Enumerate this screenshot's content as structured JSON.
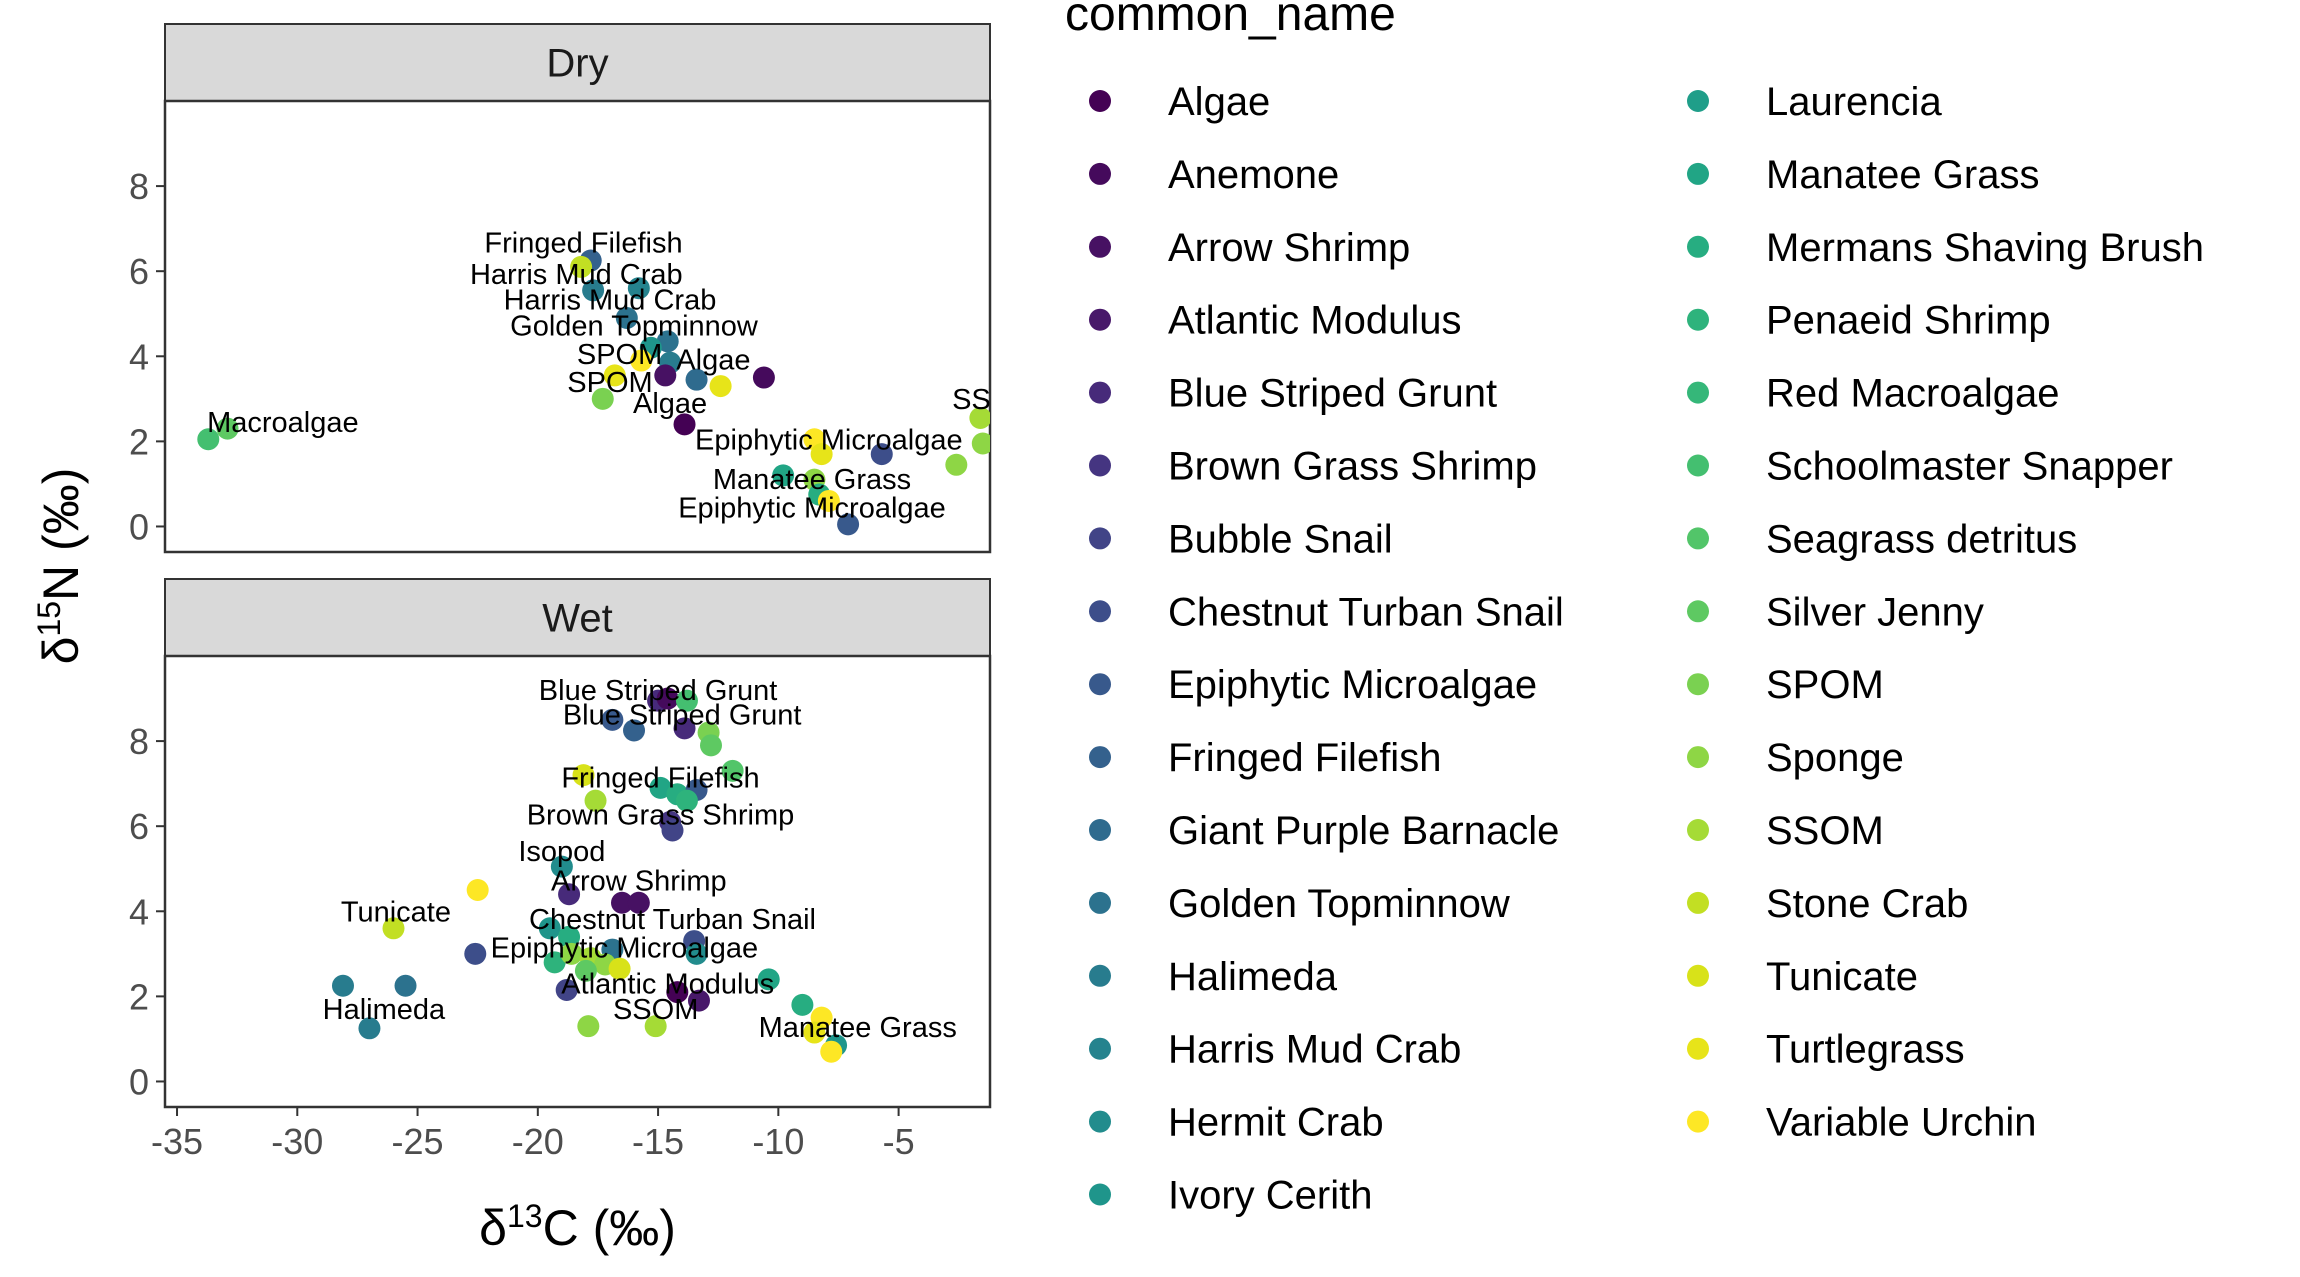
{
  "chart_data": {
    "type": "scatter",
    "xlabel": "δ13C (‰)",
    "ylabel": "δ15N (‰)",
    "xlabel_parts": {
      "base": "δ",
      "sup": "13",
      "rest": "C (‰)"
    },
    "ylabel_parts": {
      "base": "δ",
      "sup": "15",
      "rest": "N (‰)"
    },
    "xlim": [
      -35.5,
      -1.2
    ],
    "ylim": [
      -0.6,
      10.0
    ],
    "x_ticks": [
      -35,
      -30,
      -25,
      -20,
      -15,
      -10,
      -5
    ],
    "y_ticks": [
      0,
      2,
      4,
      6,
      8
    ],
    "grid": false,
    "legend_position": "right",
    "legend_title": "common_name",
    "legend": [
      {
        "name": "Algae",
        "color": "#440154"
      },
      {
        "name": "Anemone",
        "color": "#450a5c"
      },
      {
        "name": "Arrow Shrimp",
        "color": "#471163"
      },
      {
        "name": "Atlantic Modulus",
        "color": "#48186a"
      },
      {
        "name": "Blue Striped Grunt",
        "color": "#472a7a"
      },
      {
        "name": "Brown Grass Shrimp",
        "color": "#453581"
      },
      {
        "name": "Bubble Snail",
        "color": "#414487"
      },
      {
        "name": "Chestnut Turban Snail",
        "color": "#3d4e8a"
      },
      {
        "name": "Epiphytic Microalgae",
        "color": "#38598c"
      },
      {
        "name": "Fringed Filefish",
        "color": "#34618d"
      },
      {
        "name": "Giant Purple Barnacle",
        "color": "#2f6b8e"
      },
      {
        "name": "Golden Topminnow",
        "color": "#2c728e"
      },
      {
        "name": "Halimeda",
        "color": "#287c8e"
      },
      {
        "name": "Harris Mud Crab",
        "color": "#25838e"
      },
      {
        "name": "Hermit Crab",
        "color": "#228c8d"
      },
      {
        "name": "Ivory Cerith",
        "color": "#1f958b"
      },
      {
        "name": "Laurencia",
        "color": "#1f9e89"
      },
      {
        "name": "Manatee Grass",
        "color": "#21a585"
      },
      {
        "name": "Mermans Shaving Brush",
        "color": "#27ad81"
      },
      {
        "name": "Penaeid Shrimp",
        "color": "#2eb37c"
      },
      {
        "name": "Red Macroalgae",
        "color": "#35b779"
      },
      {
        "name": "Schoolmaster Snapper",
        "color": "#44bf70"
      },
      {
        "name": "Seagrass detritus",
        "color": "#52c569"
      },
      {
        "name": "Silver Jenny",
        "color": "#5ec962"
      },
      {
        "name": "SPOM",
        "color": "#7ad151"
      },
      {
        "name": "Sponge",
        "color": "#8ed645"
      },
      {
        "name": "SSOM",
        "color": "#a5db36"
      },
      {
        "name": "Stone Crab",
        "color": "#c2df23"
      },
      {
        "name": "Tunicate",
        "color": "#d8e219"
      },
      {
        "name": "Turtlegrass",
        "color": "#e7e419"
      },
      {
        "name": "Variable Urchin",
        "color": "#fde725"
      }
    ],
    "panels": [
      {
        "name": "Dry",
        "points": [
          {
            "x": -17.8,
            "y": 6.25,
            "c": "#34618d"
          },
          {
            "x": -18.2,
            "y": 6.1,
            "c": "#c2df23"
          },
          {
            "x": -15.8,
            "y": 5.6,
            "c": "#25838e"
          },
          {
            "x": -17.7,
            "y": 5.55,
            "c": "#287c8e"
          },
          {
            "x": -16.3,
            "y": 4.9,
            "c": "#2c728e"
          },
          {
            "x": -14.6,
            "y": 4.35,
            "c": "#2c728e"
          },
          {
            "x": -15.3,
            "y": 4.2,
            "c": "#1f958b"
          },
          {
            "x": -15.7,
            "y": 3.9,
            "c": "#fde725"
          },
          {
            "x": -14.5,
            "y": 3.85,
            "c": "#287c8e"
          },
          {
            "x": -16.8,
            "y": 3.55,
            "c": "#e7e419"
          },
          {
            "x": -14.7,
            "y": 3.55,
            "c": "#471163"
          },
          {
            "x": -13.4,
            "y": 3.45,
            "c": "#2f6b8e"
          },
          {
            "x": -12.4,
            "y": 3.3,
            "c": "#e7e419"
          },
          {
            "x": -10.6,
            "y": 3.5,
            "c": "#450a5c"
          },
          {
            "x": -17.3,
            "y": 3.0,
            "c": "#7ad151"
          },
          {
            "x": -13.9,
            "y": 2.4,
            "c": "#440154"
          },
          {
            "x": -33.7,
            "y": 2.05,
            "c": "#44bf70"
          },
          {
            "x": -32.9,
            "y": 2.3,
            "c": "#5ec962"
          },
          {
            "x": -8.5,
            "y": 2.05,
            "c": "#fde725"
          },
          {
            "x": -8.2,
            "y": 1.7,
            "c": "#e7e419"
          },
          {
            "x": -5.7,
            "y": 1.7,
            "c": "#3d4e8a"
          },
          {
            "x": -1.6,
            "y": 2.55,
            "c": "#a5db36"
          },
          {
            "x": -1.5,
            "y": 1.95,
            "c": "#8ed645"
          },
          {
            "x": -2.6,
            "y": 1.45,
            "c": "#8ed645"
          },
          {
            "x": -9.8,
            "y": 1.2,
            "c": "#21a585"
          },
          {
            "x": -8.5,
            "y": 1.1,
            "c": "#8ed645"
          },
          {
            "x": -8.3,
            "y": 0.75,
            "c": "#27ad81"
          },
          {
            "x": -7.9,
            "y": 0.6,
            "c": "#fde725"
          },
          {
            "x": -7.1,
            "y": 0.05,
            "c": "#38598c"
          }
        ],
        "labels": [
          {
            "text": "Fringed Filefish",
            "x": -18.1,
            "y": 6.68
          },
          {
            "text": "Harris Mud Crab",
            "x": -18.4,
            "y": 5.93
          },
          {
            "text": "Harris Mud Crab",
            "x": -17.0,
            "y": 5.33
          },
          {
            "text": "Golden Topminnow",
            "x": -16.0,
            "y": 4.72
          },
          {
            "text": "SPOM",
            "x": -16.6,
            "y": 4.05
          },
          {
            "text": "Algae",
            "x": -12.7,
            "y": 3.93
          },
          {
            "text": "SPOM",
            "x": -17.0,
            "y": 3.4
          },
          {
            "text": "SSOM",
            "x": -1.0,
            "y": 3.0
          },
          {
            "text": "Algae",
            "x": -14.5,
            "y": 2.9
          },
          {
            "text": "Macroalgae",
            "x": -30.6,
            "y": 2.45
          },
          {
            "text": "Epiphytic Microalgae",
            "x": -7.9,
            "y": 2.05
          },
          {
            "text": "Manatee Grass",
            "x": -8.6,
            "y": 1.12
          },
          {
            "text": "Epiphytic Microalgae",
            "x": -8.6,
            "y": 0.45
          }
        ]
      },
      {
        "name": "Wet",
        "points": [
          {
            "x": -15.0,
            "y": 8.95,
            "c": "#472a7a"
          },
          {
            "x": -14.6,
            "y": 9.0,
            "c": "#450a5c"
          },
          {
            "x": -13.8,
            "y": 8.95,
            "c": "#44bf70"
          },
          {
            "x": -13.9,
            "y": 8.3,
            "c": "#472a7a"
          },
          {
            "x": -12.9,
            "y": 8.2,
            "c": "#7ad151"
          },
          {
            "x": -12.8,
            "y": 7.9,
            "c": "#5ec962"
          },
          {
            "x": -16.9,
            "y": 8.5,
            "c": "#38598c"
          },
          {
            "x": -16.0,
            "y": 8.25,
            "c": "#34618d"
          },
          {
            "x": -18.1,
            "y": 7.2,
            "c": "#d8e219"
          },
          {
            "x": -11.9,
            "y": 7.3,
            "c": "#52c569"
          },
          {
            "x": -17.6,
            "y": 6.6,
            "c": "#a5db36"
          },
          {
            "x": -14.9,
            "y": 6.9,
            "c": "#21a585"
          },
          {
            "x": -14.2,
            "y": 6.75,
            "c": "#27ad81"
          },
          {
            "x": -13.4,
            "y": 6.85,
            "c": "#38598c"
          },
          {
            "x": -13.8,
            "y": 6.6,
            "c": "#2eb37c"
          },
          {
            "x": -14.5,
            "y": 6.1,
            "c": "#453581"
          },
          {
            "x": -14.4,
            "y": 5.9,
            "c": "#414487"
          },
          {
            "x": -19.0,
            "y": 5.05,
            "c": "#228c8d"
          },
          {
            "x": -22.5,
            "y": 4.5,
            "c": "#fde725"
          },
          {
            "x": -18.7,
            "y": 4.4,
            "c": "#472a7a"
          },
          {
            "x": -16.5,
            "y": 4.2,
            "c": "#471163"
          },
          {
            "x": -15.8,
            "y": 4.2,
            "c": "#471163"
          },
          {
            "x": -26.0,
            "y": 3.6,
            "c": "#c2df23"
          },
          {
            "x": -19.5,
            "y": 3.6,
            "c": "#1f958b"
          },
          {
            "x": -18.7,
            "y": 3.4,
            "c": "#27ad81"
          },
          {
            "x": -16.9,
            "y": 3.1,
            "c": "#2c728e"
          },
          {
            "x": -13.5,
            "y": 3.3,
            "c": "#3d4e8a"
          },
          {
            "x": -13.4,
            "y": 3.0,
            "c": "#228c8d"
          },
          {
            "x": -22.6,
            "y": 3.0,
            "c": "#3d4e8a"
          },
          {
            "x": -19.3,
            "y": 2.8,
            "c": "#2eb37c"
          },
          {
            "x": -18.6,
            "y": 3.0,
            "c": "#8ed645"
          },
          {
            "x": -17.8,
            "y": 2.9,
            "c": "#a5db36"
          },
          {
            "x": -17.2,
            "y": 2.75,
            "c": "#8ed645"
          },
          {
            "x": -16.6,
            "y": 2.65,
            "c": "#d8e219"
          },
          {
            "x": -18.0,
            "y": 2.6,
            "c": "#5ec962"
          },
          {
            "x": -10.4,
            "y": 2.4,
            "c": "#21a585"
          },
          {
            "x": -18.8,
            "y": 2.15,
            "c": "#414487"
          },
          {
            "x": -14.2,
            "y": 2.1,
            "c": "#440154"
          },
          {
            "x": -13.3,
            "y": 1.9,
            "c": "#48186a"
          },
          {
            "x": -9.0,
            "y": 1.8,
            "c": "#27ad81"
          },
          {
            "x": -28.1,
            "y": 2.25,
            "c": "#287c8e"
          },
          {
            "x": -25.5,
            "y": 2.25,
            "c": "#2c728e"
          },
          {
            "x": -27.0,
            "y": 1.25,
            "c": "#287c8e"
          },
          {
            "x": -17.9,
            "y": 1.3,
            "c": "#8ed645"
          },
          {
            "x": -15.1,
            "y": 1.3,
            "c": "#a5db36"
          },
          {
            "x": -8.2,
            "y": 1.5,
            "c": "#fde725"
          },
          {
            "x": -8.5,
            "y": 1.15,
            "c": "#e7e419"
          },
          {
            "x": -7.6,
            "y": 0.85,
            "c": "#1f958b"
          },
          {
            "x": -7.8,
            "y": 0.7,
            "c": "#fde725"
          }
        ],
        "labels": [
          {
            "text": "Blue Striped Grunt",
            "x": -15.0,
            "y": 9.2
          },
          {
            "text": "Blue Striped Grunt",
            "x": -14.0,
            "y": 8.62
          },
          {
            "text": "Fringed Filefish",
            "x": -14.9,
            "y": 7.15
          },
          {
            "text": "Brown Grass Shrimp",
            "x": -14.9,
            "y": 6.28
          },
          {
            "text": "Isopod",
            "x": -19.0,
            "y": 5.42
          },
          {
            "text": "Arrow Shrimp",
            "x": -15.8,
            "y": 4.72
          },
          {
            "text": "Tunicate",
            "x": -25.9,
            "y": 4.0
          },
          {
            "text": "Chestnut Turban Snail",
            "x": -14.4,
            "y": 3.82
          },
          {
            "text": "Epiphytic Microalgae",
            "x": -16.4,
            "y": 3.15
          },
          {
            "text": "Atlantic Modulus",
            "x": -14.6,
            "y": 2.3
          },
          {
            "text": "Halimeda",
            "x": -26.4,
            "y": 1.7
          },
          {
            "text": "SSOM",
            "x": -15.1,
            "y": 1.7
          },
          {
            "text": "Manatee Grass",
            "x": -6.7,
            "y": 1.28
          }
        ]
      }
    ]
  }
}
